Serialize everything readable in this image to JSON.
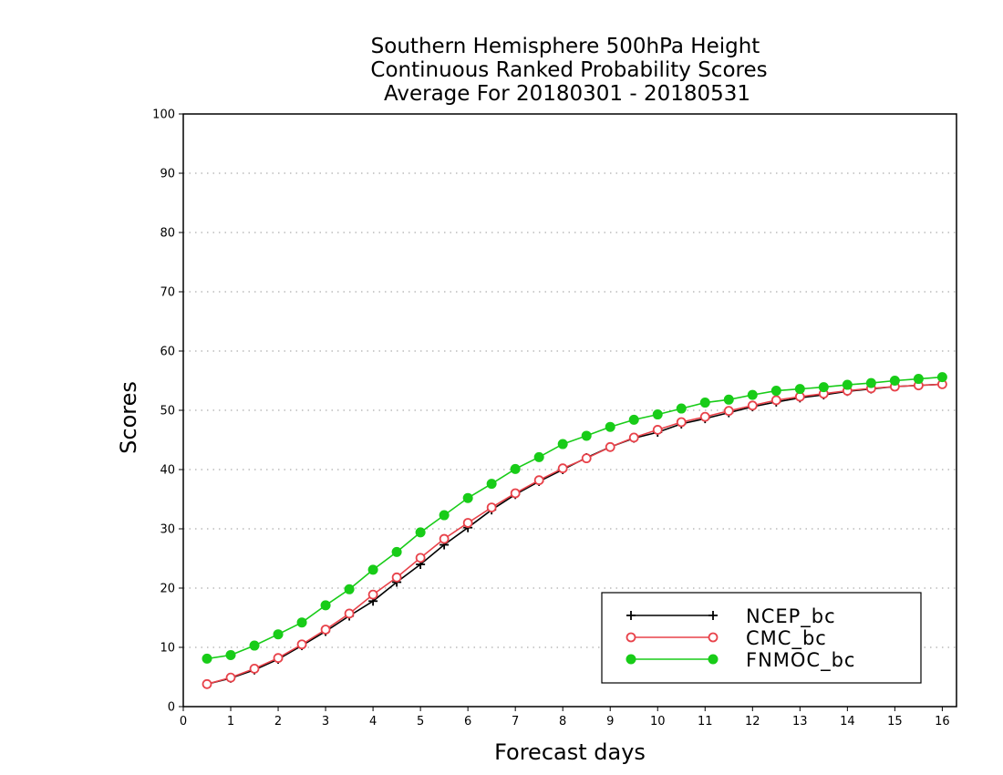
{
  "chart_data": {
    "type": "line",
    "title": [
      "Southern Hemisphere 500hPa Height",
      "Continuous Ranked Probability Scores",
      "Average For 20180301 - 20180531"
    ],
    "xlabel": "Forecast days",
    "ylabel": "Scores",
    "xlim": [
      0,
      16.3
    ],
    "ylim": [
      0,
      100
    ],
    "xticks": [
      "0",
      "1",
      "2",
      "3",
      "4",
      "5",
      "6",
      "7",
      "8",
      "9",
      "10",
      "11",
      "12",
      "13",
      "14",
      "15",
      "16"
    ],
    "yticks": [
      "0",
      "10",
      "20",
      "30",
      "40",
      "50",
      "60",
      "70",
      "80",
      "90",
      "100"
    ],
    "grid": "horizontal dotted",
    "legend_position": "bottom-right",
    "x": [
      0.5,
      1,
      1.5,
      2,
      2.5,
      3,
      3.5,
      4,
      4.5,
      5,
      5.5,
      6,
      6.5,
      7,
      7.5,
      8,
      8.5,
      9,
      9.5,
      10,
      10.5,
      11,
      11.5,
      12,
      12.5,
      13,
      13.5,
      14,
      14.5,
      15,
      15.5,
      16
    ],
    "series": [
      {
        "name": "NCEP_bc",
        "color": "#000000",
        "marker": "plus",
        "values": [
          3.8,
          4.8,
          6.2,
          8.0,
          10.3,
          12.7,
          15.3,
          17.8,
          21.0,
          24.0,
          27.3,
          30.2,
          33.2,
          35.8,
          38.0,
          40.0,
          42.0,
          43.8,
          45.3,
          46.3,
          47.7,
          48.6,
          49.6,
          50.6,
          51.4,
          52.1,
          52.6,
          53.2,
          53.6,
          54.0,
          54.2,
          54.4
        ]
      },
      {
        "name": "CMC_bc",
        "color": "#e8424a",
        "marker": "circle-open",
        "values": [
          3.8,
          4.9,
          6.4,
          8.2,
          10.5,
          13.0,
          15.7,
          18.9,
          21.8,
          25.1,
          28.3,
          31.0,
          33.6,
          36.0,
          38.2,
          40.2,
          41.9,
          43.8,
          45.4,
          46.7,
          48.0,
          48.9,
          49.9,
          50.8,
          51.7,
          52.3,
          52.8,
          53.3,
          53.7,
          54.0,
          54.2,
          54.4
        ]
      },
      {
        "name": "FNMOC_bc",
        "color": "#18cc18",
        "marker": "circle-filled",
        "values": [
          8.1,
          8.7,
          10.3,
          12.2,
          14.2,
          17.1,
          19.8,
          23.1,
          26.1,
          29.4,
          32.3,
          35.2,
          37.6,
          40.1,
          42.1,
          44.3,
          45.7,
          47.2,
          48.4,
          49.3,
          50.3,
          51.3,
          51.8,
          52.6,
          53.3,
          53.6,
          53.9,
          54.3,
          54.6,
          55.0,
          55.3,
          55.6
        ]
      }
    ]
  }
}
